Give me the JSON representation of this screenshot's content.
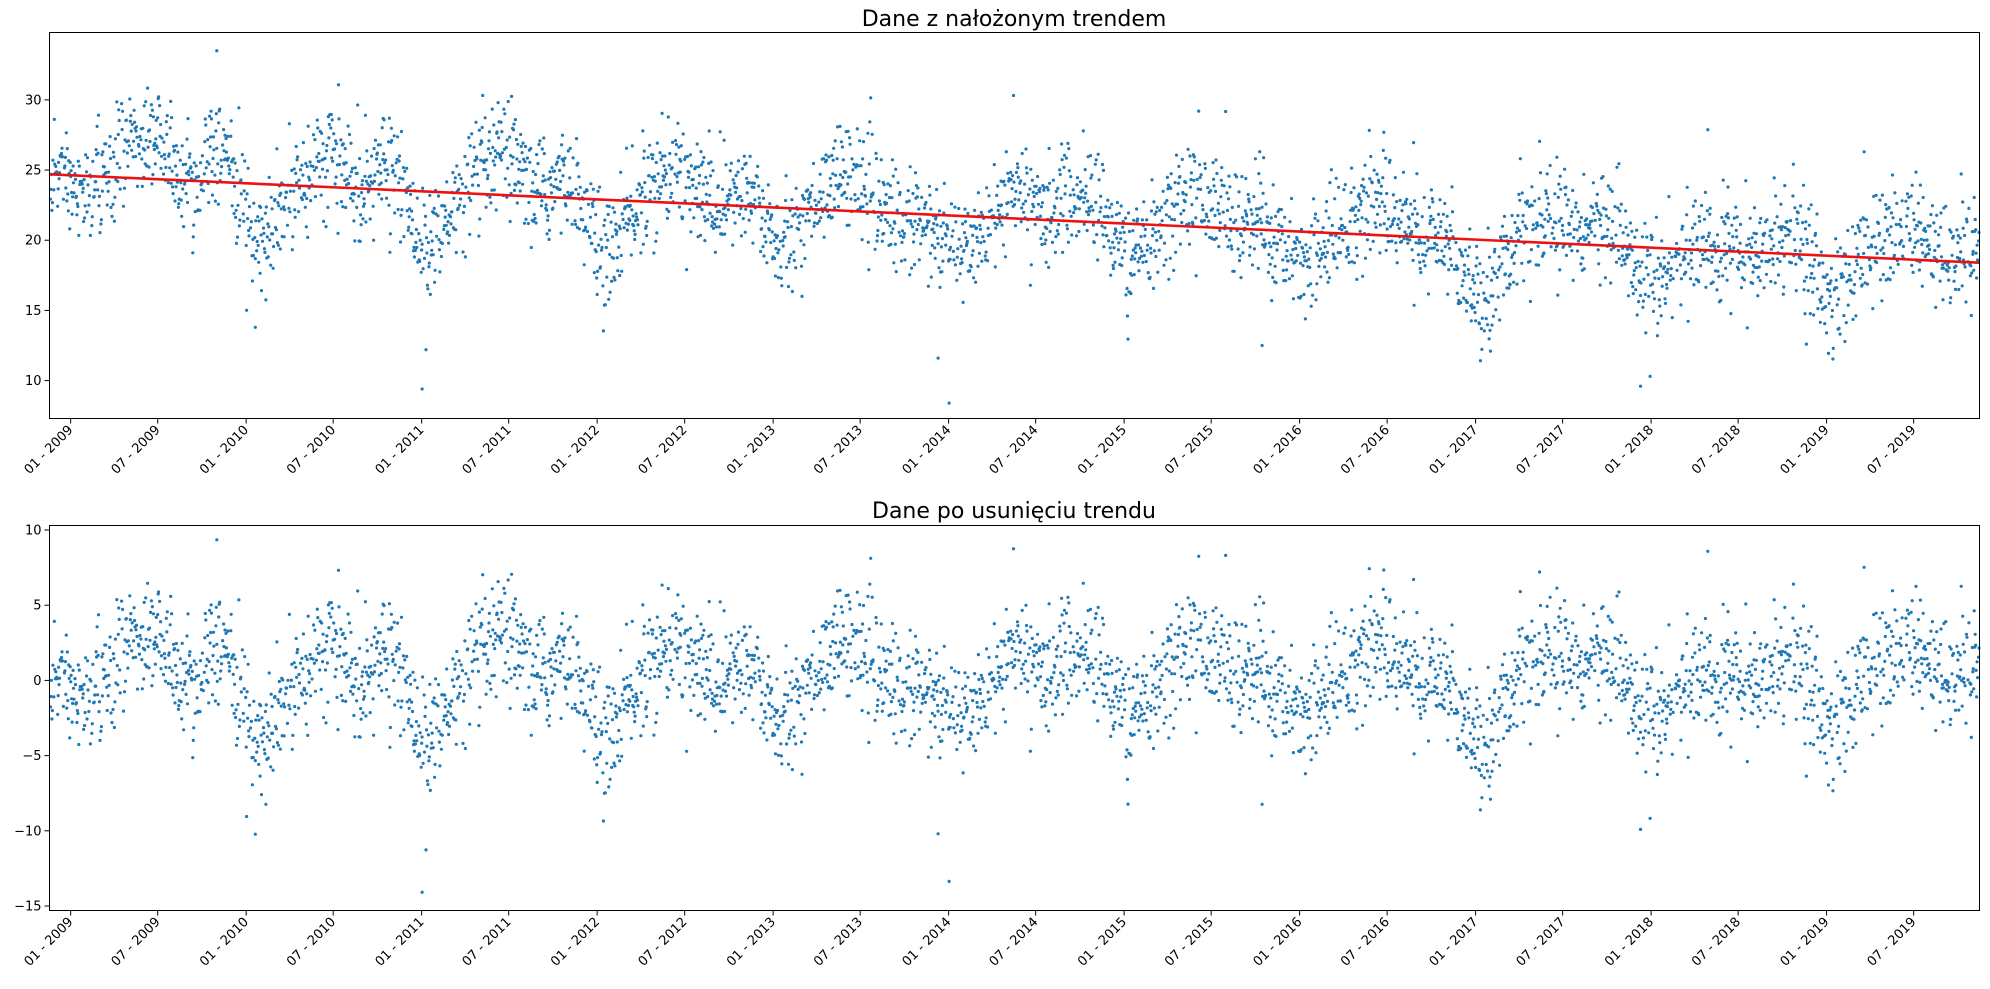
{
  "chart_data": [
    {
      "type": "scatter",
      "title": "Dane z nałożonym trendem",
      "xlabel": "",
      "ylabel": "",
      "x_range": [
        "2008-11-18",
        "2019-11-15"
      ],
      "ylim": [
        7.3,
        34.8
      ],
      "yticks": [
        10,
        15,
        20,
        25,
        30
      ],
      "grid": false,
      "x_tick_labels": [
        "01 - 2009",
        "07 - 2009",
        "01 - 2010",
        "07 - 2010",
        "01 - 2011",
        "07 - 2011",
        "01 - 2012",
        "07 - 2012",
        "01 - 2013",
        "07 - 2013",
        "01 - 2014",
        "07 - 2014",
        "01 - 2015",
        "07 - 2015",
        "01 - 2016",
        "07 - 2016",
        "01 - 2017",
        "07 - 2017",
        "01 - 2018",
        "07 - 2018",
        "01 - 2019",
        "07 - 2019"
      ],
      "series": [
        {
          "kind": "points",
          "color": "#1f77b4",
          "description_of_values": "daily observations, approx. one per day",
          "monthly_means": [
            [
              "2008-12",
              25.0
            ],
            [
              "2009-01",
              23.5
            ],
            [
              "2009-02",
              23.5
            ],
            [
              "2009-03",
              24.5
            ],
            [
              "2009-04",
              26.0
            ],
            [
              "2009-05",
              27.0
            ],
            [
              "2009-06",
              27.5
            ],
            [
              "2009-07",
              26.5
            ],
            [
              "2009-08",
              25.0
            ],
            [
              "2009-09",
              24.0
            ],
            [
              "2009-10",
              25.0
            ],
            [
              "2009-11",
              27.0
            ],
            [
              "2009-12",
              24.0
            ],
            [
              "2010-01",
              20.5
            ],
            [
              "2010-02",
              20.0
            ],
            [
              "2010-03",
              22.0
            ],
            [
              "2010-04",
              24.5
            ],
            [
              "2010-05",
              25.0
            ],
            [
              "2010-06",
              26.0
            ],
            [
              "2010-07",
              25.5
            ],
            [
              "2010-08",
              24.0
            ],
            [
              "2010-09",
              24.0
            ],
            [
              "2010-10",
              25.5
            ],
            [
              "2010-11",
              24.5
            ],
            [
              "2010-12",
              21.5
            ],
            [
              "2011-01",
              19.5
            ],
            [
              "2011-02",
              20.5
            ],
            [
              "2011-03",
              22.5
            ],
            [
              "2011-04",
              24.5
            ],
            [
              "2011-05",
              25.0
            ],
            [
              "2011-06",
              26.0
            ],
            [
              "2011-07",
              25.0
            ],
            [
              "2011-08",
              23.5
            ],
            [
              "2011-09",
              23.5
            ],
            [
              "2011-10",
              24.0
            ],
            [
              "2011-11",
              24.0
            ],
            [
              "2011-12",
              21.0
            ],
            [
              "2012-01",
              18.5
            ],
            [
              "2012-02",
              20.5
            ],
            [
              "2012-03",
              22.0
            ],
            [
              "2012-04",
              23.5
            ],
            [
              "2012-05",
              24.5
            ],
            [
              "2012-06",
              25.0
            ],
            [
              "2012-07",
              24.0
            ],
            [
              "2012-08",
              23.0
            ],
            [
              "2012-09",
              22.5
            ],
            [
              "2012-10",
              23.0
            ],
            [
              "2012-11",
              23.0
            ],
            [
              "2012-12",
              21.5
            ],
            [
              "2013-01",
              19.5
            ],
            [
              "2013-02",
              20.5
            ],
            [
              "2013-03",
              22.0
            ],
            [
              "2013-04",
              23.5
            ],
            [
              "2013-05",
              24.5
            ],
            [
              "2013-06",
              25.0
            ],
            [
              "2013-07",
              23.0
            ],
            [
              "2013-08",
              22.5
            ],
            [
              "2013-09",
              21.5
            ],
            [
              "2013-10",
              21.5
            ],
            [
              "2013-11",
              21.0
            ],
            [
              "2013-12",
              20.0
            ],
            [
              "2014-01",
              19.0
            ],
            [
              "2014-02",
              19.5
            ],
            [
              "2014-03",
              21.0
            ],
            [
              "2014-04",
              22.5
            ],
            [
              "2014-05",
              23.5
            ],
            [
              "2014-06",
              23.5
            ],
            [
              "2014-07",
              22.0
            ],
            [
              "2014-08",
              22.0
            ],
            [
              "2014-09",
              23.0
            ],
            [
              "2014-10",
              23.5
            ],
            [
              "2014-11",
              22.0
            ],
            [
              "2014-12",
              20.0
            ],
            [
              "2015-01",
              18.5
            ],
            [
              "2015-02",
              19.5
            ],
            [
              "2015-03",
              21.0
            ],
            [
              "2015-04",
              22.5
            ],
            [
              "2015-05",
              23.5
            ],
            [
              "2015-06",
              23.0
            ],
            [
              "2015-07",
              22.5
            ],
            [
              "2015-08",
              21.5
            ],
            [
              "2015-09",
              21.0
            ],
            [
              "2015-10",
              21.5
            ],
            [
              "2015-11",
              19.5
            ],
            [
              "2015-12",
              19.0
            ],
            [
              "2016-01",
              18.5
            ],
            [
              "2016-02",
              19.0
            ],
            [
              "2016-03",
              20.0
            ],
            [
              "2016-04",
              21.0
            ],
            [
              "2016-05",
              22.5
            ],
            [
              "2016-06",
              23.0
            ],
            [
              "2016-07",
              22.0
            ],
            [
              "2016-08",
              21.0
            ],
            [
              "2016-09",
              20.0
            ],
            [
              "2016-10",
              20.0
            ],
            [
              "2016-11",
              19.5
            ],
            [
              "2016-12",
              17.5
            ],
            [
              "2017-01",
              15.5
            ],
            [
              "2017-02",
              18.0
            ],
            [
              "2017-03",
              19.5
            ],
            [
              "2017-04",
              20.5
            ],
            [
              "2017-05",
              21.0
            ],
            [
              "2017-06",
              21.5
            ],
            [
              "2017-07",
              21.0
            ],
            [
              "2017-08",
              21.5
            ],
            [
              "2017-09",
              21.5
            ],
            [
              "2017-10",
              20.5
            ],
            [
              "2017-11",
              19.5
            ],
            [
              "2017-12",
              17.5
            ],
            [
              "2018-01",
              17.0
            ],
            [
              "2018-02",
              18.0
            ],
            [
              "2018-03",
              19.0
            ],
            [
              "2018-04",
              19.5
            ],
            [
              "2018-05",
              20.0
            ],
            [
              "2018-06",
              19.5
            ],
            [
              "2018-07",
              19.0
            ],
            [
              "2018-08",
              19.0
            ],
            [
              "2018-09",
              19.5
            ],
            [
              "2018-10",
              20.5
            ],
            [
              "2018-11",
              19.5
            ],
            [
              "2018-12",
              17.0
            ],
            [
              "2019-01",
              15.5
            ],
            [
              "2019-02",
              17.0
            ],
            [
              "2019-03",
              19.0
            ],
            [
              "2019-04",
              20.0
            ],
            [
              "2019-05",
              20.0
            ],
            [
              "2019-06",
              20.5
            ],
            [
              "2019-07",
              20.0
            ],
            [
              "2019-08",
              19.0
            ],
            [
              "2019-09",
              19.0
            ],
            [
              "2019-10",
              19.5
            ],
            [
              "2019-11",
              19.5
            ]
          ],
          "outliers": [
            [
              "2009-11-01",
              33.5
            ],
            [
              "2010-01-20",
              13.8
            ],
            [
              "2011-01-02",
              9.4
            ],
            [
              "2011-01-10",
              12.2
            ],
            [
              "2013-12-10",
              11.6
            ],
            [
              "2014-01-02",
              8.4
            ],
            [
              "2015-10-15",
              12.5
            ],
            [
              "2017-12-10",
              9.6
            ],
            [
              "2017-12-30",
              10.3
            ],
            [
              "2018-11-20",
              12.6
            ],
            [
              "2019-03-20",
              26.3
            ]
          ]
        },
        {
          "kind": "trend-line",
          "color": "#ee1111",
          "x": [
            "2008-11-18",
            "2019-11-15"
          ],
          "y": [
            24.7,
            18.4
          ]
        }
      ]
    },
    {
      "type": "scatter",
      "title": "Dane po usunięciu trendu",
      "xlabel": "",
      "ylabel": "",
      "x_range": [
        "2008-11-18",
        "2019-11-15"
      ],
      "ylim": [
        -15.3,
        10.3
      ],
      "yticks": [
        -15,
        -10,
        -5,
        0,
        5,
        10
      ],
      "grid": false,
      "x_tick_labels": [
        "01 - 2009",
        "07 - 2009",
        "01 - 2010",
        "07 - 2010",
        "01 - 2011",
        "07 - 2011",
        "01 - 2012",
        "07 - 2012",
        "01 - 2013",
        "07 - 2013",
        "01 - 2014",
        "07 - 2014",
        "01 - 2015",
        "07 - 2015",
        "01 - 2016",
        "07 - 2016",
        "01 - 2017",
        "07 - 2017",
        "01 - 2018",
        "07 - 2018",
        "01 - 2019",
        "07 - 2019"
      ],
      "series": [
        {
          "kind": "points",
          "color": "#1f77b4",
          "derived_from": "top chart values minus trend line"
        }
      ],
      "outliers": [
        [
          "2009-11-01",
          9.3
        ],
        [
          "2010-01-20",
          -10.3
        ],
        [
          "2011-01-02",
          -14.2
        ],
        [
          "2011-01-10",
          -11.2
        ],
        [
          "2013-12-10",
          -10.2
        ],
        [
          "2014-01-02",
          -13.3
        ],
        [
          "2017-12-10",
          -9.9
        ],
        [
          "2017-12-30",
          -9.1
        ]
      ]
    }
  ]
}
